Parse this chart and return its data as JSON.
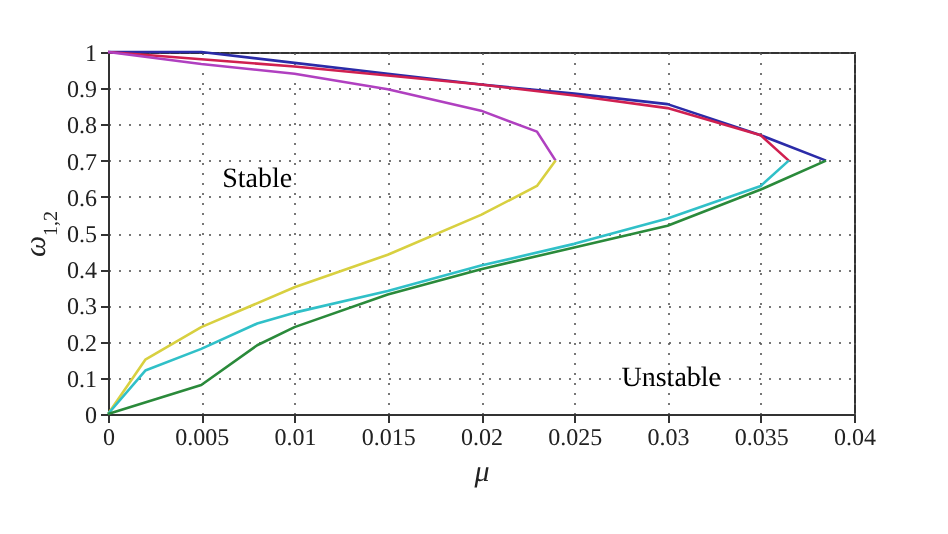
{
  "chart_data": {
    "type": "line",
    "xlabel": "μ",
    "ylabel": "ω$_{1,2}$",
    "xlim": [
      0,
      0.04
    ],
    "xticks": [
      0,
      0.005,
      0.01,
      0.015,
      0.02,
      0.025,
      0.03,
      0.035,
      0.04
    ],
    "ylim": [
      0,
      1
    ],
    "yticks": [
      0,
      0.1,
      0.2,
      0.3,
      0.4,
      0.5,
      0.6,
      0.7,
      0.8,
      0.9,
      1
    ],
    "grid": true,
    "line_style": "solid",
    "marker": "none",
    "series": [
      {
        "color": "#2b2ba8",
        "x": [
          0,
          0.005,
          0.01,
          0.015,
          0.02,
          0.025,
          0.03,
          0.035,
          0.0385
        ],
        "values": [
          1,
          1,
          0.97,
          0.94,
          0.91,
          0.885,
          0.856,
          0.77,
          0.7
        ]
      },
      {
        "color": "#d02050",
        "x": [
          0,
          0.005,
          0.01,
          0.015,
          0.02,
          0.025,
          0.03,
          0.035,
          0.0365
        ],
        "values": [
          1,
          0.98,
          0.96,
          0.935,
          0.91,
          0.88,
          0.845,
          0.77,
          0.7
        ]
      },
      {
        "color": "#b040c0",
        "x": [
          0,
          0.005,
          0.01,
          0.015,
          0.02,
          0.023,
          0.024
        ],
        "values": [
          1,
          0.967,
          0.94,
          0.897,
          0.838,
          0.78,
          0.7
        ]
      },
      {
        "color": "#d8d040",
        "x": [
          0,
          0.002,
          0.005,
          0.01,
          0.015,
          0.02,
          0.023,
          0.024
        ],
        "values": [
          0,
          0.15,
          0.24,
          0.35,
          0.44,
          0.55,
          0.63,
          0.7
        ]
      },
      {
        "color": "#30c0c8",
        "x": [
          0,
          0.002,
          0.005,
          0.008,
          0.01,
          0.015,
          0.02,
          0.025,
          0.03,
          0.035,
          0.0365
        ],
        "values": [
          0,
          0.12,
          0.18,
          0.25,
          0.28,
          0.34,
          0.41,
          0.47,
          0.54,
          0.63,
          0.7
        ]
      },
      {
        "color": "#2a8a3a",
        "x": [
          0,
          0.005,
          0.008,
          0.01,
          0.015,
          0.02,
          0.025,
          0.03,
          0.035,
          0.0385
        ],
        "values": [
          0,
          0.08,
          0.19,
          0.24,
          0.33,
          0.4,
          0.46,
          0.52,
          0.62,
          0.7
        ]
      }
    ],
    "annotations": [
      "Stable",
      "Unstable"
    ]
  }
}
